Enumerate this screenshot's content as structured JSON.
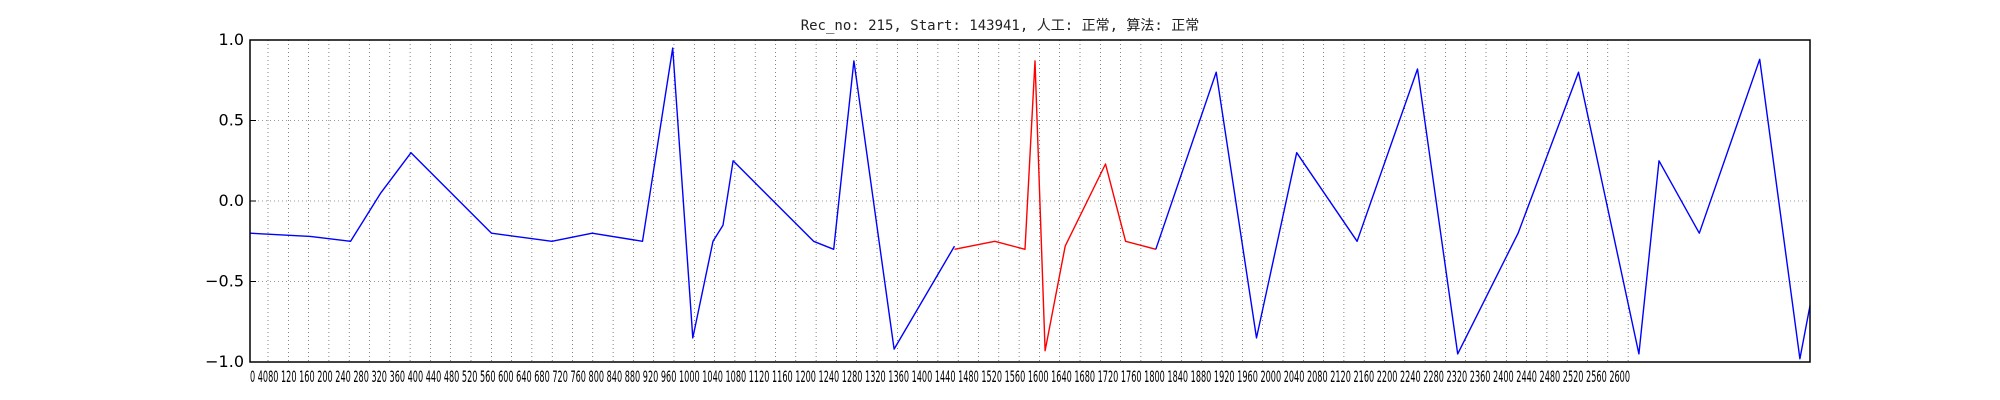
{
  "chart_data": {
    "type": "line",
    "title": "Rec_no: 215, Start: 143941, 人工: 正常, 算法: 正常",
    "xlabel": "",
    "ylabel": "",
    "xlim": [
      0,
      1550
    ],
    "ylim": [
      -1.0,
      1.0
    ],
    "yticks": [
      "1.0",
      "0.5",
      "0.0",
      "−0.5",
      "−1.0"
    ],
    "xtick_strip": "0 4080 120 160 200 240 280 320 360 400 440 480 520 560 600 640 680 720 760 800 840 880 920 960 1000 1040 1080 1120 1160 1200 1240 1280 1320 1360 1400 1440 1480 1520 1560 1600 1640 1680 1720 1760 1800 1840 1880 1920 1960 2000 2040 2080 2120 2160 2200 2240 2280 2320 2360 2400 2440 2480 2520 2560 2600",
    "grid": true,
    "series": [
      {
        "color": "#0000ff",
        "x": [
          0,
          60,
          100,
          130,
          160,
          240,
          300,
          340,
          390,
          420,
          440,
          460,
          470,
          480,
          560,
          580,
          600,
          640,
          700
        ],
        "y": [
          -0.2,
          -0.22,
          -0.25,
          0.05,
          0.3,
          -0.2,
          -0.25,
          -0.2,
          -0.25,
          0.95,
          -0.85,
          -0.25,
          -0.15,
          0.25,
          -0.25,
          -0.3,
          0.87,
          -0.92,
          -0.28
        ]
      },
      {
        "color": "#ff0000",
        "x": [
          700,
          740,
          770,
          780,
          790,
          810,
          850,
          870,
          900
        ],
        "y": [
          -0.3,
          -0.25,
          -0.3,
          0.87,
          -0.93,
          -0.28,
          0.23,
          -0.25,
          -0.3
        ]
      },
      {
        "color": "#0000ff",
        "x": [
          900,
          960,
          1000,
          1040,
          1100,
          1160,
          1200,
          1260,
          1320,
          1380,
          1400,
          1440,
          1500,
          1540,
          1550
        ],
        "y": [
          -0.3,
          0.8,
          -0.85,
          0.3,
          -0.25,
          0.82,
          -0.95,
          -0.2,
          0.8,
          -0.95,
          0.25,
          -0.2,
          0.88,
          -0.98,
          -0.65
        ]
      }
    ]
  }
}
